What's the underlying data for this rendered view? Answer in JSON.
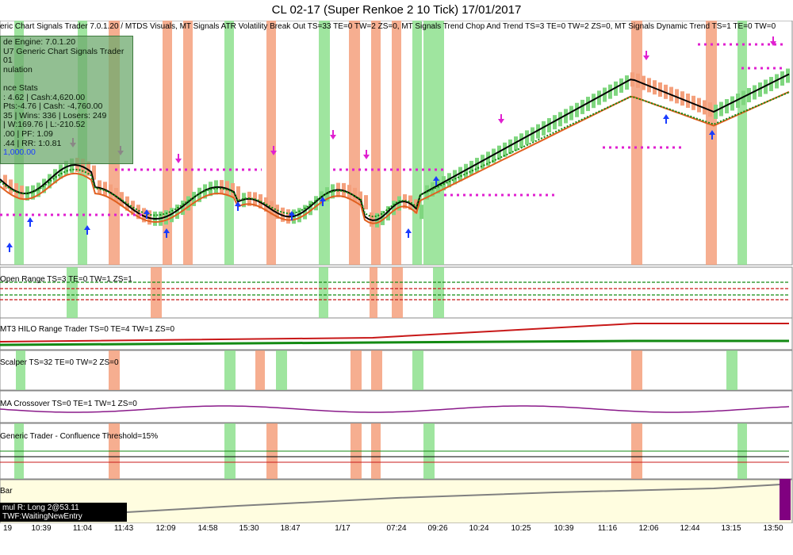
{
  "window": {
    "title": "CL 02-17 (Super Renkoe 2  10 Tick)  17/01/2017"
  },
  "header": {
    "indicators": "eric Chart Signals Trader 7.0.1.20  / MTDS Visuals, MT Signals ATR Volatility Break Out TS=33 TE=0 TW=2 ZS=0, MT Signals Trend Chop And Trend TS=3 TE=0 TW=2 ZS=0, MT Signals Dynamic Trend TS=1 TE=0 TW=0"
  },
  "stats": {
    "lines": [
      "de Engine: 7.0.1.20",
      "U7 Generic Chart Signals Trader",
      "01",
      "nulation",
      "",
      "nce Stats",
      ": 4.62 | Cash:4,620.00",
      " Pts:-4.76 | Cash: -4,760.00",
      "35 | Wins: 336 | Losers: 249",
      " | W:169.76 | L:-210.52",
      ".00 | PF: 1.09",
      ".44 | RR: 1:0.81"
    ],
    "overlay_text": "1,000.00"
  },
  "panels": {
    "open_range": "Open Range TS=3 TE=0 TW=1 ZS=1",
    "hilo": "MT3 HILO Range Trader TS=0 TE=4 TW=1 ZS=0",
    "scalper": "Scalper TS=32 TE=0 TW=2 ZS=0",
    "ma": "MA Crossover TS=0 TE=1 TW=1 ZS=0",
    "generic": "Generic Trader - Confluence Threshold=15%",
    "bar": "Bar"
  },
  "status": {
    "line1": "mul  R: Long 2@53.11",
    "line2": "   TWF:WaitingNewEntry"
  },
  "time_axis": [
    "19",
    "10:39",
    "11:04",
    "11:43",
    "12:09",
    "14:58",
    "15:30",
    "18:47",
    "1/17",
    "07:24",
    "09:26",
    "10:24",
    "10:25",
    "10:39",
    "11:16",
    "12:06",
    "12:44",
    "13:15",
    "13:50"
  ],
  "colors": {
    "green_band": "#8ee08e",
    "orange_band": "#f4a07c",
    "up_candle": "#7fd67f",
    "down_candle": "#f4a07c",
    "magenta": "#e020d0",
    "ma_black": "#000000",
    "ma_orange": "#e06020",
    "ma_green_dotted": "#138a13",
    "up_arrow": "#1a3cff",
    "down_arrow": "#e020d0",
    "equity": "#808080",
    "bar_panel_bg": "#fffde0"
  }
}
